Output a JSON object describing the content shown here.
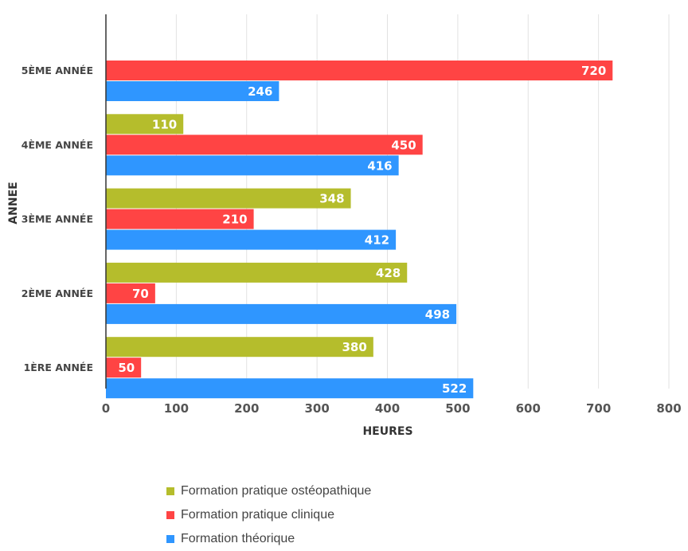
{
  "chart_data": {
    "type": "bar",
    "orientation": "horizontal",
    "title": "",
    "xlabel": "HEURES",
    "ylabel": "ANNEE",
    "xlim": [
      0,
      800
    ],
    "xticks": [
      "0",
      "100",
      "200",
      "300",
      "400",
      "500",
      "600",
      "700",
      "800"
    ],
    "categories": [
      "5ÈME ANNÉE",
      "4ÈME ANNÉE",
      "3ÈME ANNÉE",
      "2ÈME ANNÉE",
      "1ÈRE ANNÉE"
    ],
    "series": [
      {
        "name": "Formation pratique ostéopathique",
        "color": "#b5bd2c",
        "values": [
          null,
          110,
          348,
          428,
          380
        ]
      },
      {
        "name": "Formation pratique clinique",
        "color": "#ff4444",
        "values": [
          720,
          450,
          210,
          70,
          50
        ]
      },
      {
        "name": "Formation théorique",
        "color": "#2f96ff",
        "values": [
          246,
          416,
          412,
          498,
          522
        ]
      }
    ],
    "grid": true,
    "legend_position": "bottom"
  }
}
